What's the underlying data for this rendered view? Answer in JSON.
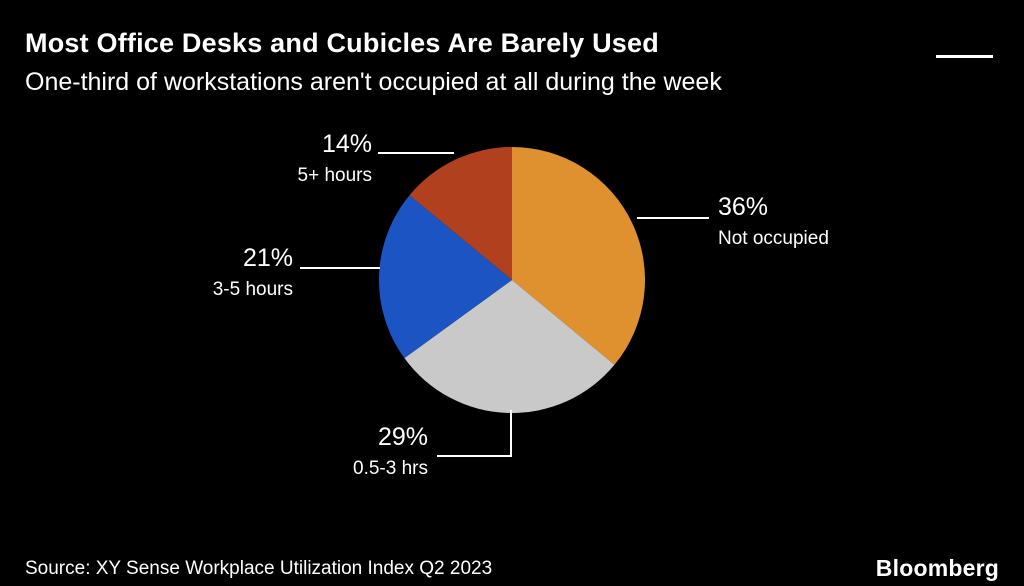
{
  "header": {
    "title": "Most Office Desks and Cubicles Are Barely Used",
    "subtitle": "One-third of workstations aren't occupied at all during the week"
  },
  "chart_data": {
    "type": "pie",
    "title": "Most Office Desks and Cubicles Are Barely Used",
    "subtitle": "One-third of workstations aren't occupied at all during the week",
    "start_angle": "top",
    "direction": "clockwise",
    "slices": [
      {
        "label": "Not occupied",
        "pct_label": "36%",
        "value": 36,
        "color": "#E0912F"
      },
      {
        "label": "0.5-3 hrs",
        "pct_label": "29%",
        "value": 29,
        "color": "#C9C9C9"
      },
      {
        "label": "3-5 hours",
        "pct_label": "21%",
        "value": 21,
        "color": "#1C54C4"
      },
      {
        "label": "5+ hours",
        "pct_label": "14%",
        "value": 14,
        "color": "#B1411E"
      }
    ]
  },
  "footer": {
    "source": "Source: XY Sense Workplace Utilization Index Q2 2023",
    "brand": "Bloomberg"
  }
}
